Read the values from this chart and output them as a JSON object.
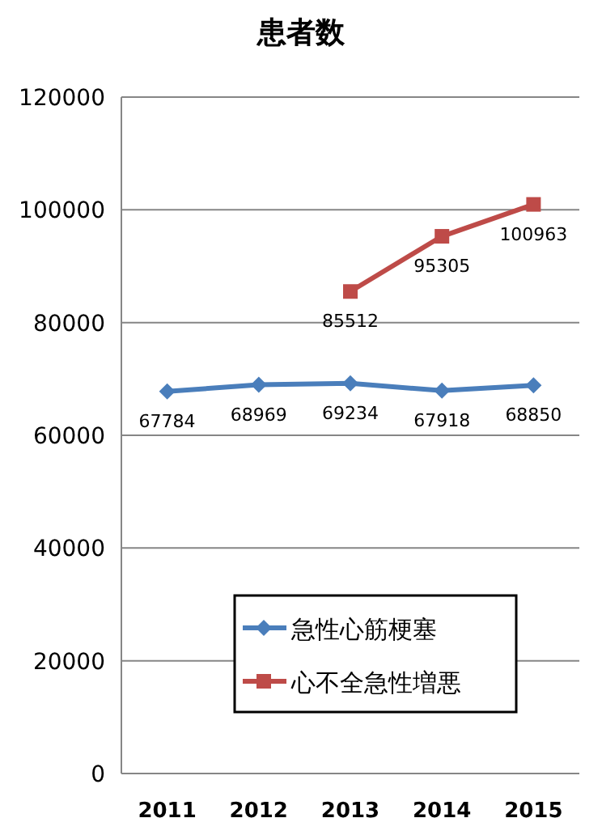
{
  "chart_data": {
    "type": "line",
    "title": "患者数",
    "categories": [
      "2011",
      "2012",
      "2013",
      "2014",
      "2015"
    ],
    "series": [
      {
        "name": "急性心筋梗塞",
        "color": "#4a7ebb",
        "marker": "diamond",
        "values": [
          67784,
          68969,
          69234,
          67918,
          68850
        ]
      },
      {
        "name": "心不全急性増悪",
        "color": "#be4b48",
        "marker": "square",
        "values": [
          null,
          null,
          85512,
          95305,
          100963
        ]
      }
    ],
    "ylim": [
      0,
      120000
    ],
    "yticks": [
      0,
      20000,
      40000,
      60000,
      80000,
      100000,
      120000
    ],
    "grid": "y",
    "legend": "bottom",
    "data_labels": true
  }
}
